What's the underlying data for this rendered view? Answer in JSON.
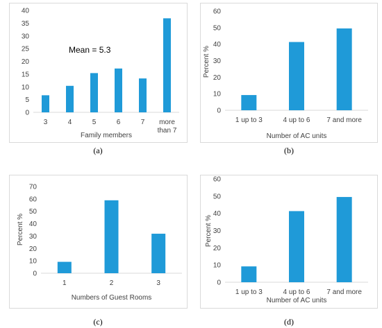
{
  "bar_color": "#1f9ad8",
  "captions": [
    "(a)",
    "(b)",
    "(c)",
    "(d)"
  ],
  "chart_data": [
    {
      "type": "bar",
      "panel": "a",
      "categories": [
        "3",
        "4",
        "5",
        "6",
        "7",
        "more than 7"
      ],
      "values": [
        6.7,
        10.4,
        15.4,
        17.2,
        13.3,
        36.9
      ],
      "xlabel": "Family members",
      "ylabel": "",
      "ylim": [
        0,
        40
      ],
      "yticks": [
        0,
        5,
        10,
        15,
        20,
        25,
        30,
        35,
        40
      ],
      "annotation": "Mean = 5.3",
      "grid": false
    },
    {
      "type": "bar",
      "panel": "b",
      "categories": [
        "1 up to 3",
        "4 up to 6",
        "7 and more"
      ],
      "values": [
        9.2,
        41.3,
        49.5
      ],
      "xlabel": "Number of AC units",
      "ylabel": "Percent %",
      "ylim": [
        0,
        60
      ],
      "yticks": [
        0,
        10,
        20,
        30,
        40,
        50,
        60
      ],
      "grid": false
    },
    {
      "type": "bar",
      "panel": "c",
      "categories": [
        "1",
        "2",
        "3"
      ],
      "values": [
        9.2,
        58.9,
        31.9
      ],
      "xlabel": "Numbers of Guest Rooms",
      "ylabel": "Percent %",
      "ylim": [
        0,
        70
      ],
      "yticks": [
        0,
        10,
        20,
        30,
        40,
        50,
        60,
        70
      ],
      "grid": false
    },
    {
      "type": "bar",
      "panel": "d",
      "categories": [
        "1 up to 3",
        "4 up to 6",
        "7 and more"
      ],
      "values": [
        9.2,
        41.3,
        49.5
      ],
      "xlabel": "Number of AC units",
      "ylabel": "Percent %",
      "ylim": [
        0,
        60
      ],
      "yticks": [
        0,
        10,
        20,
        30,
        40,
        50,
        60
      ],
      "grid": false
    }
  ]
}
